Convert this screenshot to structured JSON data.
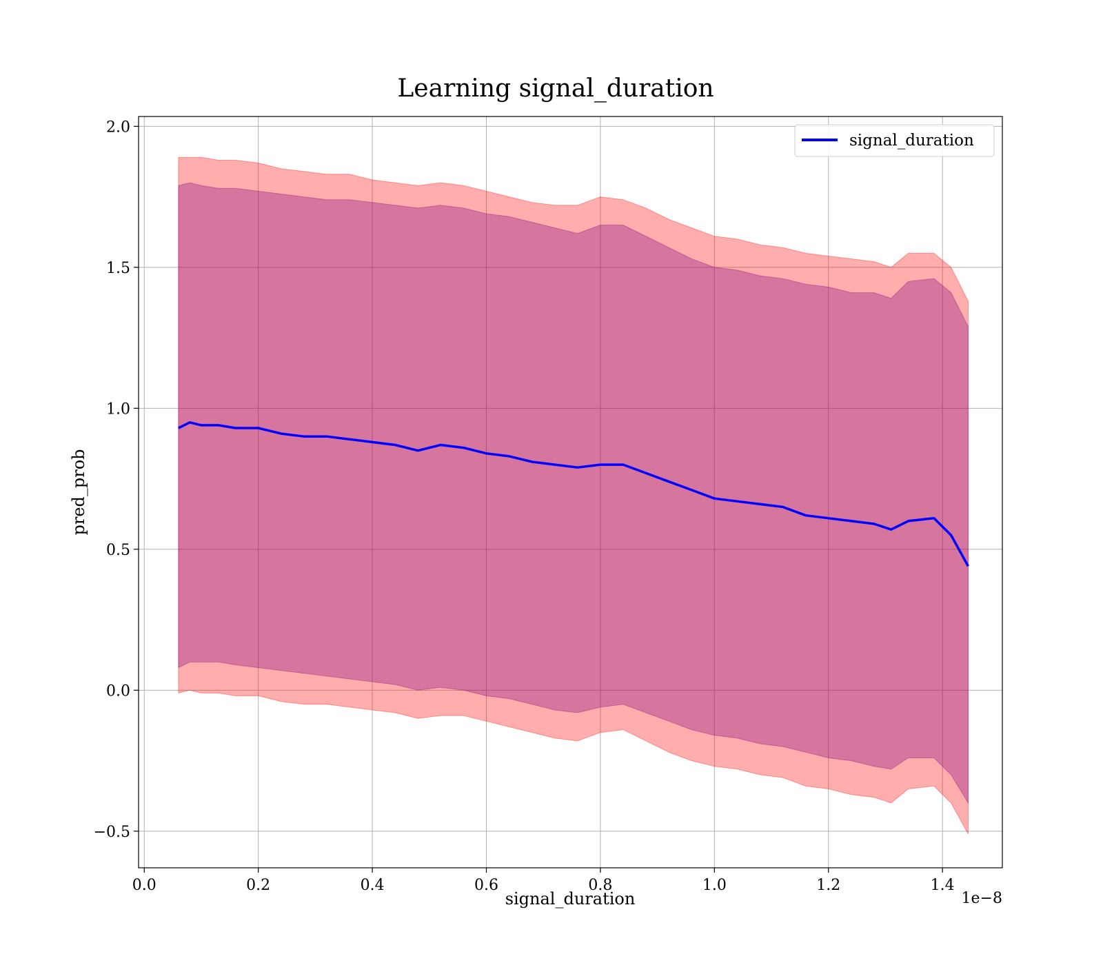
{
  "chart_data": {
    "type": "line",
    "title": "Learning signal_duration",
    "xlabel": "signal_duration",
    "ylabel": "pred_prob",
    "x_offset_label": "1e−8",
    "xlim": [
      -0.01,
      1.505
    ],
    "ylim": [
      -0.63,
      2.035
    ],
    "x_ticks": [
      0.0,
      0.2,
      0.4,
      0.6,
      0.8,
      1.0,
      1.2,
      1.4
    ],
    "x_tick_labels": [
      "0.0",
      "0.2",
      "0.4",
      "0.6",
      "0.8",
      "1.0",
      "1.2",
      "1.4"
    ],
    "y_ticks": [
      -0.5,
      0.0,
      0.5,
      1.0,
      1.5,
      2.0
    ],
    "y_tick_labels": [
      "−0.5",
      "0.0",
      "0.5",
      "1.0",
      "1.5",
      "2.0"
    ],
    "grid": true,
    "legend": {
      "position": "top-right",
      "entries": [
        "signal_duration"
      ]
    },
    "colors": {
      "line": "#0000ff",
      "outer_band": "#ff0000",
      "inner_band": "#800080",
      "grid": "#b0b0b0"
    },
    "series": [
      {
        "name": "signal_duration",
        "x": [
          0.06,
          0.08,
          0.1,
          0.13,
          0.16,
          0.2,
          0.24,
          0.28,
          0.32,
          0.36,
          0.4,
          0.44,
          0.48,
          0.52,
          0.56,
          0.6,
          0.64,
          0.68,
          0.72,
          0.76,
          0.8,
          0.84,
          0.88,
          0.92,
          0.96,
          1.0,
          1.04,
          1.08,
          1.12,
          1.16,
          1.2,
          1.24,
          1.28,
          1.31,
          1.34,
          1.385,
          1.415,
          1.445
        ],
        "y": [
          0.93,
          0.95,
          0.94,
          0.94,
          0.93,
          0.93,
          0.91,
          0.9,
          0.9,
          0.89,
          0.88,
          0.87,
          0.85,
          0.87,
          0.86,
          0.84,
          0.83,
          0.81,
          0.8,
          0.79,
          0.8,
          0.8,
          0.77,
          0.74,
          0.71,
          0.68,
          0.67,
          0.66,
          0.65,
          0.62,
          0.61,
          0.6,
          0.59,
          0.57,
          0.6,
          0.61,
          0.55,
          0.44
        ]
      }
    ],
    "bands": [
      {
        "label": "outer",
        "upper": [
          1.89,
          1.89,
          1.89,
          1.88,
          1.88,
          1.87,
          1.85,
          1.84,
          1.83,
          1.83,
          1.81,
          1.8,
          1.79,
          1.8,
          1.79,
          1.77,
          1.75,
          1.73,
          1.72,
          1.72,
          1.75,
          1.74,
          1.71,
          1.67,
          1.64,
          1.61,
          1.6,
          1.58,
          1.57,
          1.55,
          1.54,
          1.53,
          1.52,
          1.5,
          1.55,
          1.55,
          1.5,
          1.38
        ],
        "lower": [
          -0.01,
          0.0,
          -0.01,
          -0.01,
          -0.02,
          -0.02,
          -0.04,
          -0.05,
          -0.05,
          -0.06,
          -0.07,
          -0.08,
          -0.1,
          -0.09,
          -0.09,
          -0.11,
          -0.13,
          -0.15,
          -0.17,
          -0.18,
          -0.15,
          -0.14,
          -0.18,
          -0.22,
          -0.25,
          -0.27,
          -0.28,
          -0.3,
          -0.31,
          -0.34,
          -0.35,
          -0.37,
          -0.38,
          -0.4,
          -0.35,
          -0.34,
          -0.4,
          -0.51
        ]
      },
      {
        "label": "inner",
        "upper": [
          1.79,
          1.8,
          1.79,
          1.78,
          1.78,
          1.77,
          1.76,
          1.75,
          1.74,
          1.74,
          1.73,
          1.72,
          1.71,
          1.72,
          1.71,
          1.69,
          1.68,
          1.66,
          1.64,
          1.62,
          1.65,
          1.65,
          1.61,
          1.57,
          1.53,
          1.5,
          1.49,
          1.47,
          1.46,
          1.44,
          1.43,
          1.41,
          1.41,
          1.39,
          1.45,
          1.46,
          1.41,
          1.29
        ],
        "lower": [
          0.08,
          0.1,
          0.1,
          0.1,
          0.09,
          0.08,
          0.07,
          0.06,
          0.05,
          0.04,
          0.03,
          0.02,
          0.0,
          0.01,
          0.0,
          -0.02,
          -0.03,
          -0.05,
          -0.07,
          -0.08,
          -0.06,
          -0.05,
          -0.08,
          -0.11,
          -0.14,
          -0.16,
          -0.17,
          -0.19,
          -0.2,
          -0.22,
          -0.24,
          -0.25,
          -0.27,
          -0.28,
          -0.24,
          -0.24,
          -0.3,
          -0.4
        ]
      }
    ]
  }
}
